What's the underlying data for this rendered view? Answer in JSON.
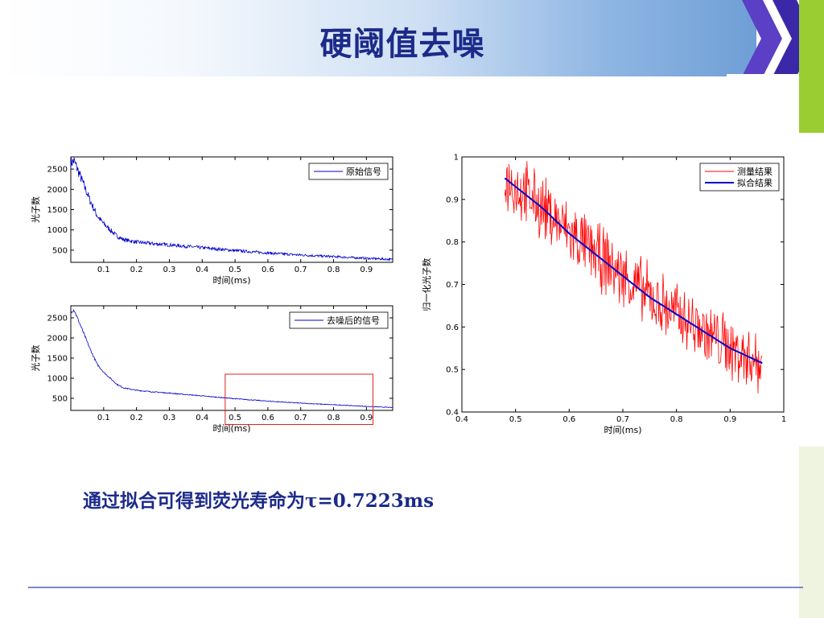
{
  "slide": {
    "title": "硬阈值去噪",
    "caption": "通过拟合可得到荧光寿命为τ=0.7223ms"
  },
  "theme": {
    "title_color": "#1c2a8a",
    "raw_color": "#0000cc",
    "fit_color": "#0000cc",
    "measure_color": "#ff0000",
    "highlight_color": "#e02020",
    "accent_green": "#9acd32",
    "accent_purple": "#5b3fc4"
  },
  "chart_data": [
    {
      "type": "line",
      "ylabel": "光子数",
      "xlabel": "时间(ms)",
      "xlim": [
        0,
        0.98
      ],
      "ylim": [
        200,
        2800
      ],
      "xticks": [
        0.1,
        0.2,
        0.3,
        0.4,
        0.5,
        0.6,
        0.7,
        0.8,
        0.9
      ],
      "yticks": [
        500,
        1000,
        1500,
        2000,
        2500
      ],
      "legend_position": "top-right",
      "series": [
        {
          "name": "原始信号",
          "noise": "high",
          "x": [
            0.0,
            0.01,
            0.02,
            0.04,
            0.06,
            0.08,
            0.1,
            0.12,
            0.14,
            0.16,
            0.2,
            0.25,
            0.3,
            0.4,
            0.5,
            0.6,
            0.7,
            0.8,
            0.9,
            0.98
          ],
          "y": [
            2650,
            2700,
            2500,
            2100,
            1700,
            1350,
            1150,
            1000,
            850,
            760,
            700,
            660,
            630,
            560,
            490,
            430,
            380,
            340,
            300,
            270
          ]
        }
      ]
    },
    {
      "type": "line",
      "ylabel": "光子数",
      "xlabel": "时间(ms)",
      "xlim": [
        0,
        0.98
      ],
      "ylim": [
        200,
        2800
      ],
      "xticks": [
        0.1,
        0.2,
        0.3,
        0.4,
        0.5,
        0.6,
        0.7,
        0.8,
        0.9
      ],
      "yticks": [
        500,
        1000,
        1500,
        2000,
        2500
      ],
      "legend_position": "top-right",
      "highlight_x_range": [
        0.47,
        0.92
      ],
      "highlight_y_range": [
        -150,
        1100
      ],
      "series": [
        {
          "name": "去噪后的信号",
          "noise": "low",
          "x": [
            0.0,
            0.01,
            0.02,
            0.04,
            0.06,
            0.08,
            0.1,
            0.12,
            0.14,
            0.16,
            0.2,
            0.25,
            0.3,
            0.4,
            0.5,
            0.6,
            0.7,
            0.8,
            0.9,
            0.98
          ],
          "y": [
            2650,
            2700,
            2500,
            2100,
            1700,
            1350,
            1150,
            1000,
            850,
            760,
            700,
            660,
            630,
            560,
            490,
            430,
            380,
            340,
            300,
            270
          ]
        }
      ]
    },
    {
      "type": "line",
      "ylabel": "归一化光子数",
      "xlabel": "时间(ms)",
      "xlim": [
        0.4,
        1
      ],
      "ylim": [
        0.4,
        1
      ],
      "xticks": [
        0.4,
        0.5,
        0.6,
        0.7,
        0.8,
        0.9,
        1
      ],
      "yticks": [
        0.4,
        0.5,
        0.6,
        0.7,
        0.8,
        0.9,
        1
      ],
      "legend_position": "top-right",
      "series": [
        {
          "name": "测量结果",
          "noise": "medium",
          "x": [
            0.48,
            0.5,
            0.55,
            0.6,
            0.65,
            0.7,
            0.75,
            0.8,
            0.85,
            0.9,
            0.96
          ],
          "y": [
            0.95,
            0.93,
            0.88,
            0.82,
            0.77,
            0.72,
            0.67,
            0.63,
            0.59,
            0.55,
            0.515
          ]
        },
        {
          "name": "拟合结果",
          "noise": "none",
          "x": [
            0.48,
            0.5,
            0.55,
            0.6,
            0.65,
            0.7,
            0.75,
            0.8,
            0.85,
            0.9,
            0.96
          ],
          "y": [
            0.95,
            0.93,
            0.88,
            0.82,
            0.77,
            0.72,
            0.67,
            0.63,
            0.59,
            0.55,
            0.515
          ]
        }
      ]
    }
  ]
}
